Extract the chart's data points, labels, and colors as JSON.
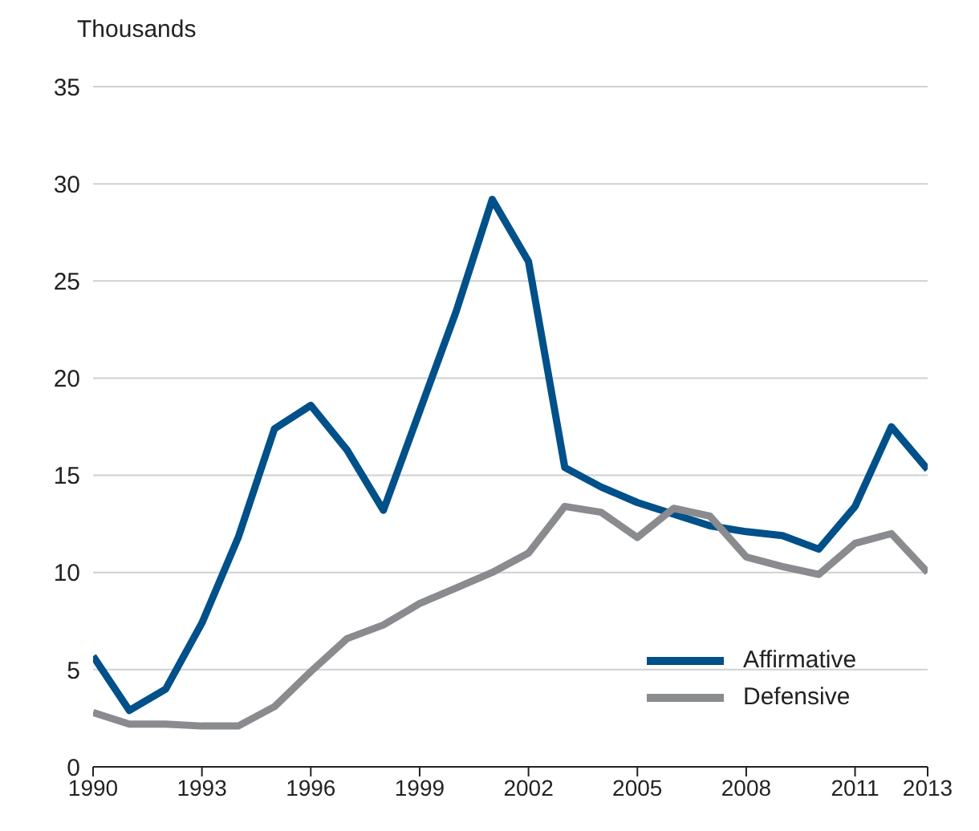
{
  "chart_data": {
    "type": "line",
    "ylabel": "Thousands",
    "x": [
      1990,
      1991,
      1992,
      1993,
      1994,
      1995,
      1996,
      1997,
      1998,
      1999,
      2000,
      2001,
      2002,
      2003,
      2004,
      2005,
      2006,
      2007,
      2008,
      2009,
      2010,
      2011,
      2012,
      2013
    ],
    "series": [
      {
        "name": "Affirmative",
        "color": "#00508a",
        "values": [
          5.7,
          2.9,
          4.0,
          7.4,
          11.8,
          17.4,
          18.6,
          16.3,
          13.2,
          18.3,
          23.4,
          29.2,
          26.0,
          15.4,
          14.4,
          13.6,
          13.0,
          12.4,
          12.1,
          11.9,
          11.2,
          13.4,
          17.5,
          15.3
        ]
      },
      {
        "name": "Defensive",
        "color": "#8a8b8e",
        "values": [
          2.8,
          2.2,
          2.2,
          2.1,
          2.1,
          3.1,
          4.9,
          6.6,
          7.3,
          8.4,
          9.2,
          10.0,
          11.0,
          13.4,
          13.1,
          11.8,
          13.3,
          12.9,
          10.8,
          10.3,
          9.9,
          11.5,
          12.0,
          10.0
        ]
      }
    ],
    "xlim": [
      1990,
      2013
    ],
    "xticks": [
      1990,
      1993,
      1996,
      1999,
      2002,
      2005,
      2008,
      2011,
      2013
    ],
    "ylim": [
      0,
      35
    ],
    "yticks": [
      0,
      5,
      10,
      15,
      20,
      25,
      30,
      35
    ],
    "grid": "y",
    "legend": "bottom right",
    "marker": "none",
    "line_style": "solid"
  }
}
